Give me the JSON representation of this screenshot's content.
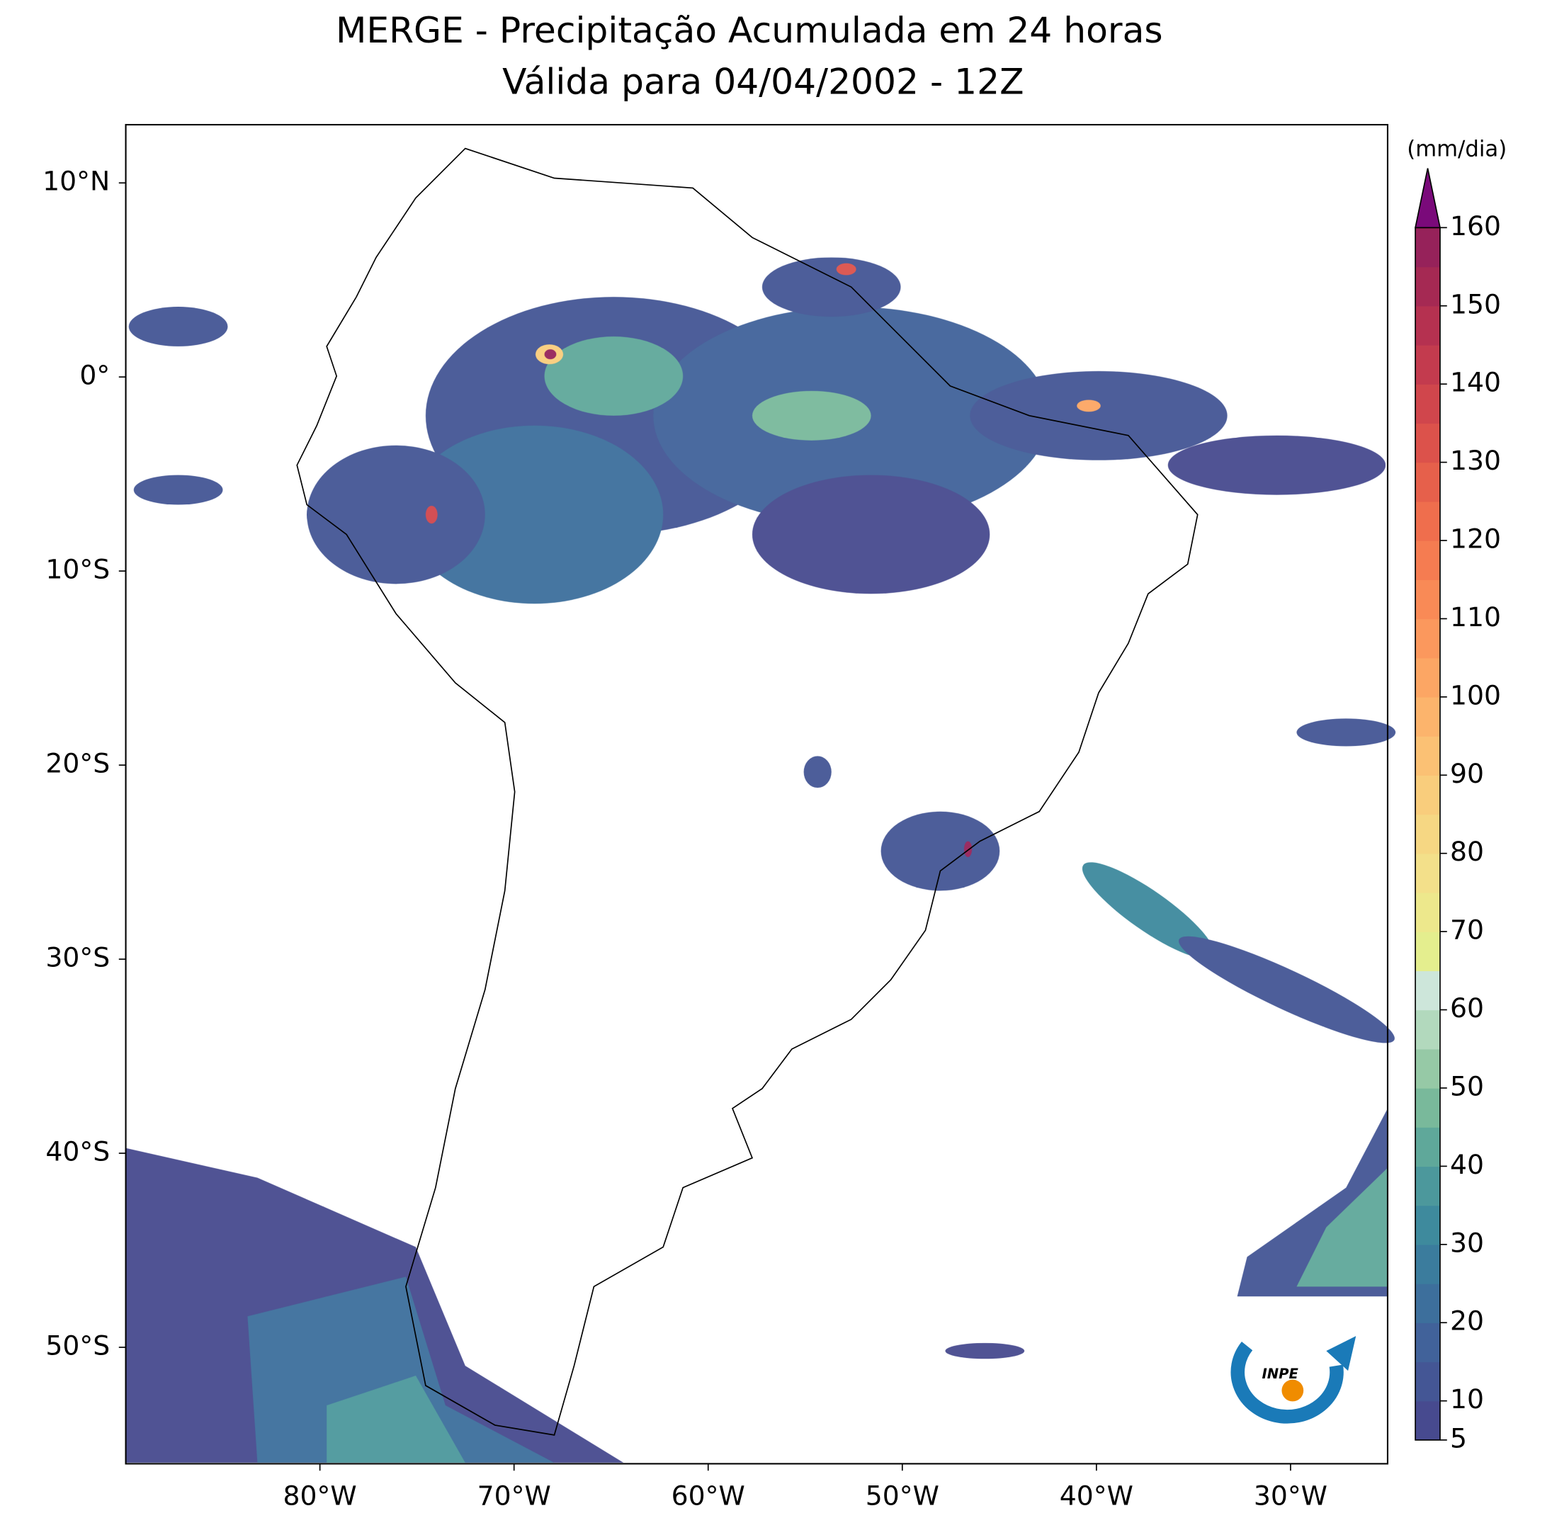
{
  "title": "MERGE - Precipitação Acumulada em 24 horas",
  "subtitle": "Válida para 04/04/2002 - 12Z",
  "map": {
    "xlim": [
      -90,
      -25
    ],
    "ylim": [
      -56,
      13
    ],
    "xticks": [
      {
        "value": -80,
        "label": "80°W"
      },
      {
        "value": -70,
        "label": "70°W"
      },
      {
        "value": -60,
        "label": "60°W"
      },
      {
        "value": -50,
        "label": "50°W"
      },
      {
        "value": -40,
        "label": "40°W"
      },
      {
        "value": -30,
        "label": "30°W"
      }
    ],
    "yticks": [
      {
        "value": 10,
        "label": "10°N"
      },
      {
        "value": 0,
        "label": "0°"
      },
      {
        "value": -10,
        "label": "10°S"
      },
      {
        "value": -20,
        "label": "20°S"
      },
      {
        "value": -30,
        "label": "30°S"
      },
      {
        "value": -40,
        "label": "40°S"
      },
      {
        "value": -50,
        "label": "50°S"
      }
    ]
  },
  "colorbar": {
    "label": "(mm/dia)",
    "lim": [
      5,
      160
    ],
    "ticks": [
      5,
      10,
      20,
      30,
      40,
      50,
      60,
      70,
      80,
      90,
      100,
      110,
      120,
      130,
      140,
      150,
      160
    ],
    "colors": [
      "#474a8f",
      "#445695",
      "#41629a",
      "#3d6f9c",
      "#3b7c9d",
      "#3e8a9d",
      "#4c989c",
      "#5fa89a",
      "#79b99b",
      "#96c9a6",
      "#b2d9bd",
      "#cde6da",
      "#e4ee8e",
      "#ede88c",
      "#f3e08a",
      "#f6d783",
      "#f9cd7c",
      "#fbc174",
      "#fcb46c",
      "#fca664",
      "#fb985d",
      "#f98a56",
      "#f57c51",
      "#ef6e4d",
      "#e6604b",
      "#dc524b",
      "#d0464c",
      "#c33b4e",
      "#b53150",
      "#a52953",
      "#96225a"
    ],
    "extend_color": "#7a0a7a"
  }
}
